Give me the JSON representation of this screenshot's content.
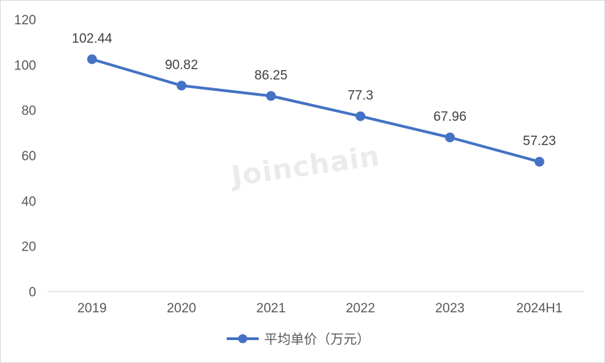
{
  "chart_data": {
    "type": "line",
    "categories": [
      "2019",
      "2020",
      "2021",
      "2022",
      "2023",
      "2024H1"
    ],
    "series": [
      {
        "name": "平均单价（万元）",
        "values": [
          102.44,
          90.82,
          86.25,
          77.3,
          67.96,
          57.23
        ]
      }
    ],
    "data_labels": [
      "102.44",
      "90.82",
      "86.25",
      "77.3",
      "67.96",
      "57.23"
    ],
    "y_ticks": [
      "0",
      "20",
      "40",
      "60",
      "80",
      "100",
      "120"
    ],
    "ylim": [
      0,
      120
    ],
    "grid": false,
    "legend_position": "bottom",
    "title": "",
    "xlabel": "",
    "ylabel": "",
    "colors": {
      "series": "#4472c4",
      "axis": "#d9d9d9",
      "text": "#595959"
    }
  },
  "watermark": "Joinchain"
}
